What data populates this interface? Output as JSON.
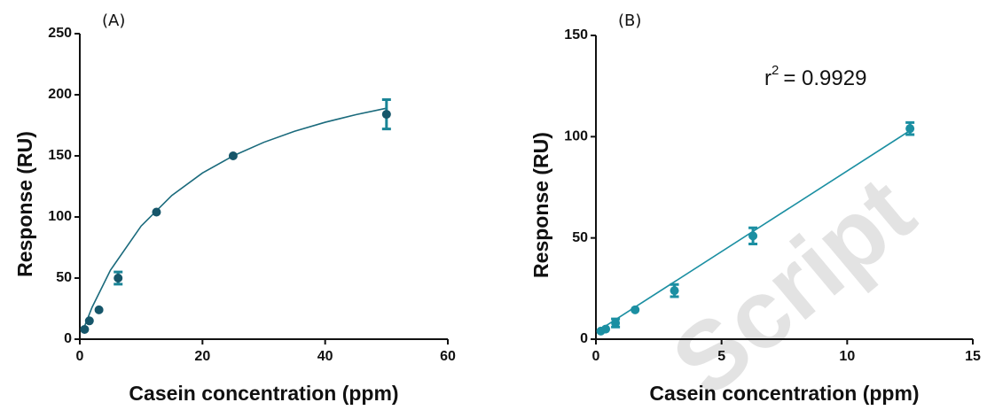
{
  "watermark": "Script",
  "chart_data": [
    {
      "type": "scatter",
      "panel": "(A)",
      "x_label": "Casein concentration (ppm)",
      "y_label": "Response (RU)",
      "xlim": [
        0,
        60
      ],
      "xticks": [
        0,
        20,
        40,
        60
      ],
      "ylim": [
        0,
        250
      ],
      "yticks": [
        0,
        50,
        100,
        150,
        200,
        250
      ],
      "series": [
        {
          "x": [
            0.78,
            1.56,
            3.125,
            6.25,
            12.5,
            25,
            50
          ],
          "values": [
            8,
            15,
            24,
            50,
            104,
            150,
            184
          ],
          "errors": [
            null,
            null,
            null,
            5,
            null,
            null,
            12
          ],
          "color": "#16566a",
          "error_color": "#1a8496"
        }
      ],
      "fit": {
        "x": [
          0.5,
          2,
          5,
          10,
          15,
          20,
          25,
          30,
          35,
          40,
          45,
          50
        ],
        "values": [
          7.1,
          26.1,
          56.5,
          92.6,
          117.6,
          136.0,
          150.0,
          161.1,
          170.1,
          177.5,
          183.7,
          189.0
        ],
        "color": "#1a6a7c"
      }
    },
    {
      "type": "scatter",
      "panel": "(B)",
      "x_label": "Casein concentration (ppm)",
      "y_label": "Response (RU)",
      "annotation": {
        "base": "r",
        "sup": "2",
        "rest": "= 0.9929"
      },
      "xlim": [
        0,
        15
      ],
      "xticks": [
        0,
        5,
        10,
        15
      ],
      "ylim": [
        0,
        150
      ],
      "yticks": [
        0,
        50,
        100,
        150
      ],
      "series": [
        {
          "x": [
            0.195,
            0.39,
            0.78,
            1.56,
            3.125,
            6.25,
            12.5
          ],
          "values": [
            4,
            5,
            8,
            14.5,
            24,
            51,
            104
          ],
          "errors": [
            null,
            null,
            2,
            null,
            3,
            4,
            3
          ],
          "color": "#1b8fa2",
          "error_color": "#1b8fa2"
        }
      ],
      "fit": {
        "x": [
          0.195,
          12.5
        ],
        "values": [
          5,
          103
        ],
        "color": "#1b8fa2"
      }
    }
  ]
}
